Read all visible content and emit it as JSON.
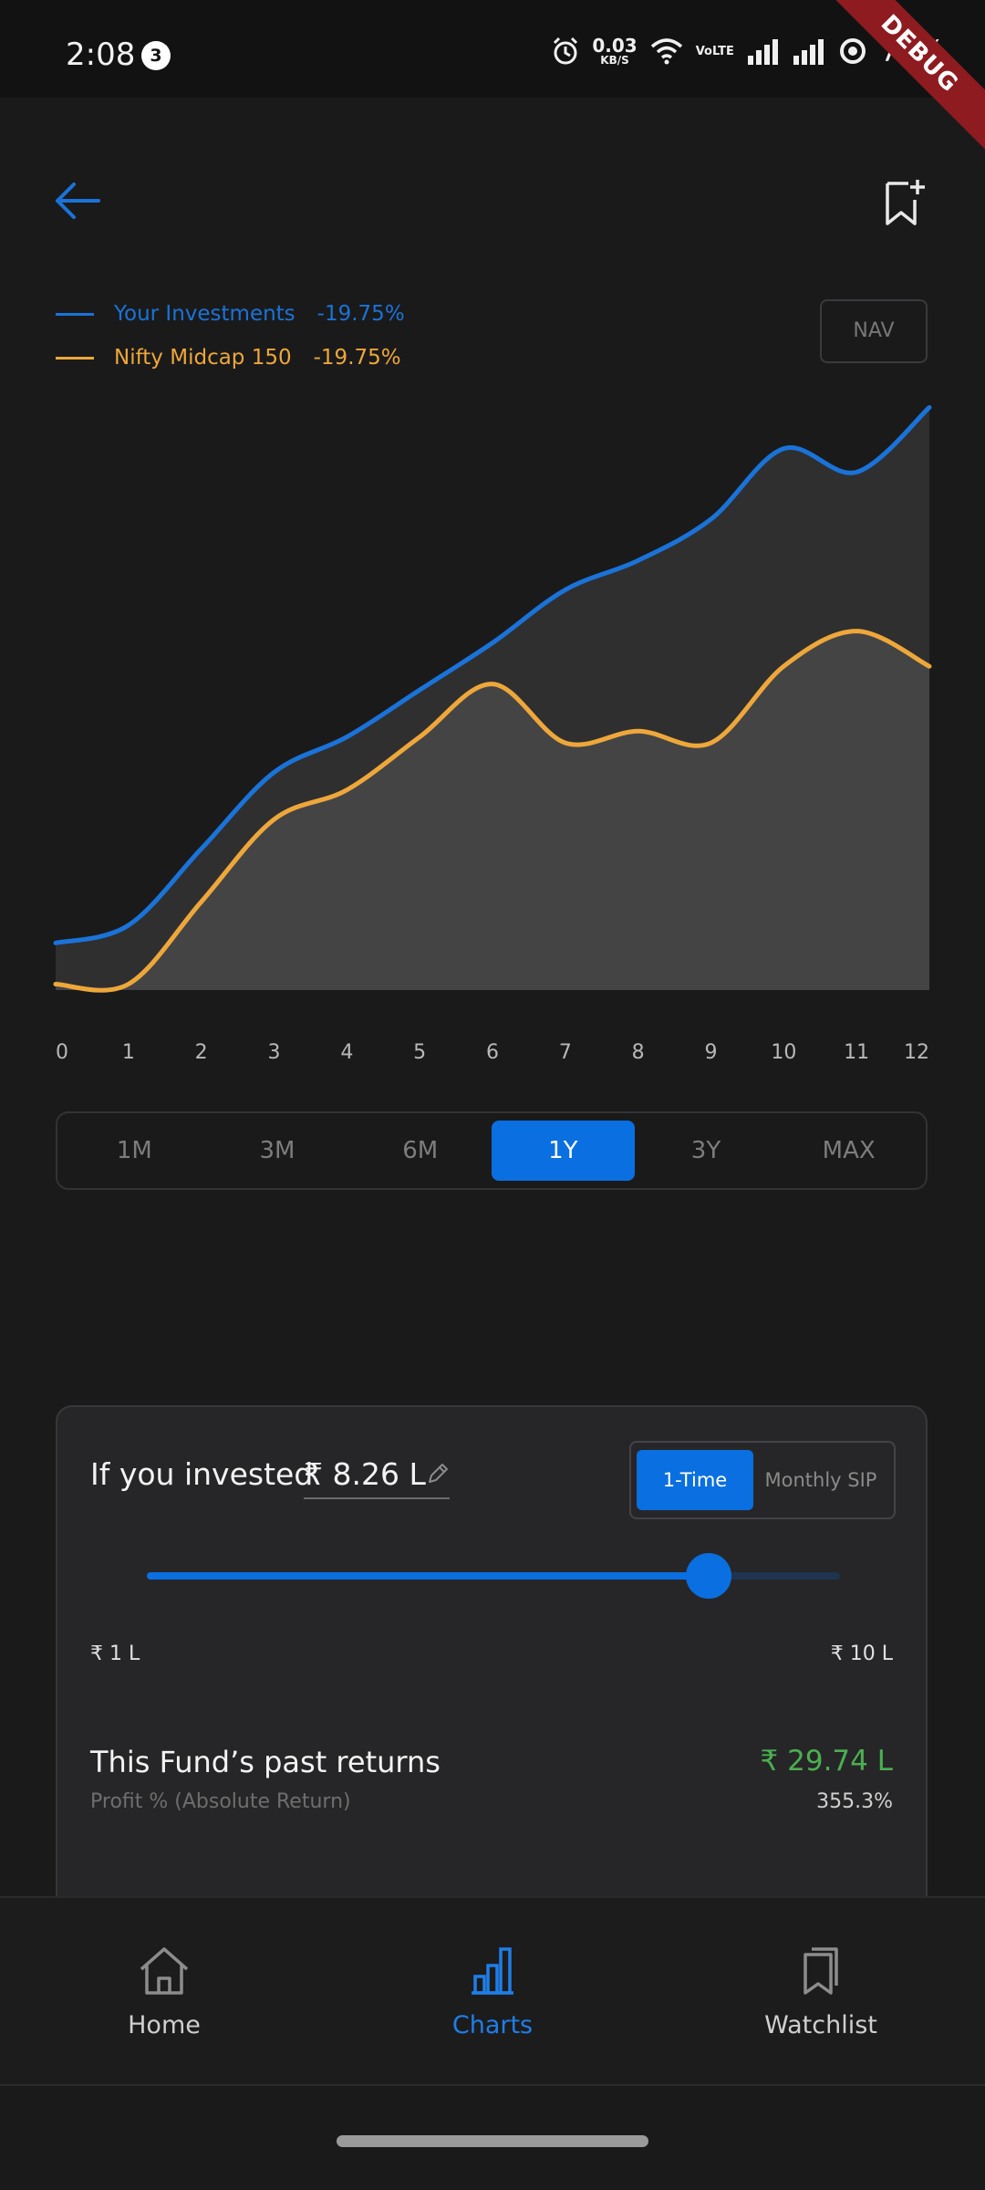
{
  "status_bar": {
    "time": "2:08",
    "notification_count": "3",
    "network_speed": "0.03",
    "network_unit": "KB/S",
    "volte_label": "VoLTE",
    "battery": "79%",
    "debug_banner": "DEBUG"
  },
  "legend": {
    "series": [
      {
        "label": "Your Investments",
        "value": "-19.75%",
        "color": "#1a73d8"
      },
      {
        "label": "Nifty Midcap 150",
        "value": "-19.75%",
        "color": "#eea73a"
      }
    ],
    "nav_button": "NAV"
  },
  "chart_data": {
    "type": "area",
    "x": [
      0,
      1,
      2,
      3,
      4,
      5,
      6,
      7,
      8,
      9,
      10,
      11,
      12
    ],
    "xticks": [
      "0",
      "1",
      "2",
      "3",
      "4",
      "5",
      "6",
      "7",
      "8",
      "9",
      "10",
      "11",
      "12"
    ],
    "ylim": [
      0,
      100
    ],
    "series": [
      {
        "name": "Your Investments",
        "color": "#1a73d8",
        "values": [
          8,
          11,
          24,
          37,
          43,
          51,
          59,
          68,
          73,
          80,
          92,
          88,
          99
        ]
      },
      {
        "name": "Nifty Midcap 150",
        "color": "#eea73a",
        "values": [
          1,
          1,
          15,
          29,
          34,
          43,
          52,
          42,
          44,
          42,
          55,
          61,
          55
        ]
      }
    ]
  },
  "ranges": {
    "options": [
      "1M",
      "3M",
      "6M",
      "1Y",
      "3Y",
      "MAX"
    ],
    "selected": "1Y"
  },
  "calculator": {
    "label": "If you invested",
    "amount": "₹ 8.26 L",
    "toggle": {
      "options": [
        "1-Time",
        "Monthly SIP"
      ],
      "selected": "1-Time"
    },
    "slider": {
      "min_label": "₹ 1 L",
      "max_label": "₹ 10 L",
      "level": 0.81
    },
    "returns_title": "This Fund’s past returns",
    "returns_subtitle": "Profit % (Absolute Return)",
    "returns_value": "₹ 29.74 L",
    "returns_pct": "355.3%"
  },
  "bottom_nav": {
    "items": [
      {
        "label": "Home",
        "icon": "home-icon"
      },
      {
        "label": "Charts",
        "icon": "bar-chart-icon"
      },
      {
        "label": "Watchlist",
        "icon": "bookmark-icon"
      }
    ],
    "active": "Charts"
  },
  "colors": {
    "accent": "#0a6fe0",
    "positive": "#4caf50",
    "background": "#1a1a1b"
  }
}
